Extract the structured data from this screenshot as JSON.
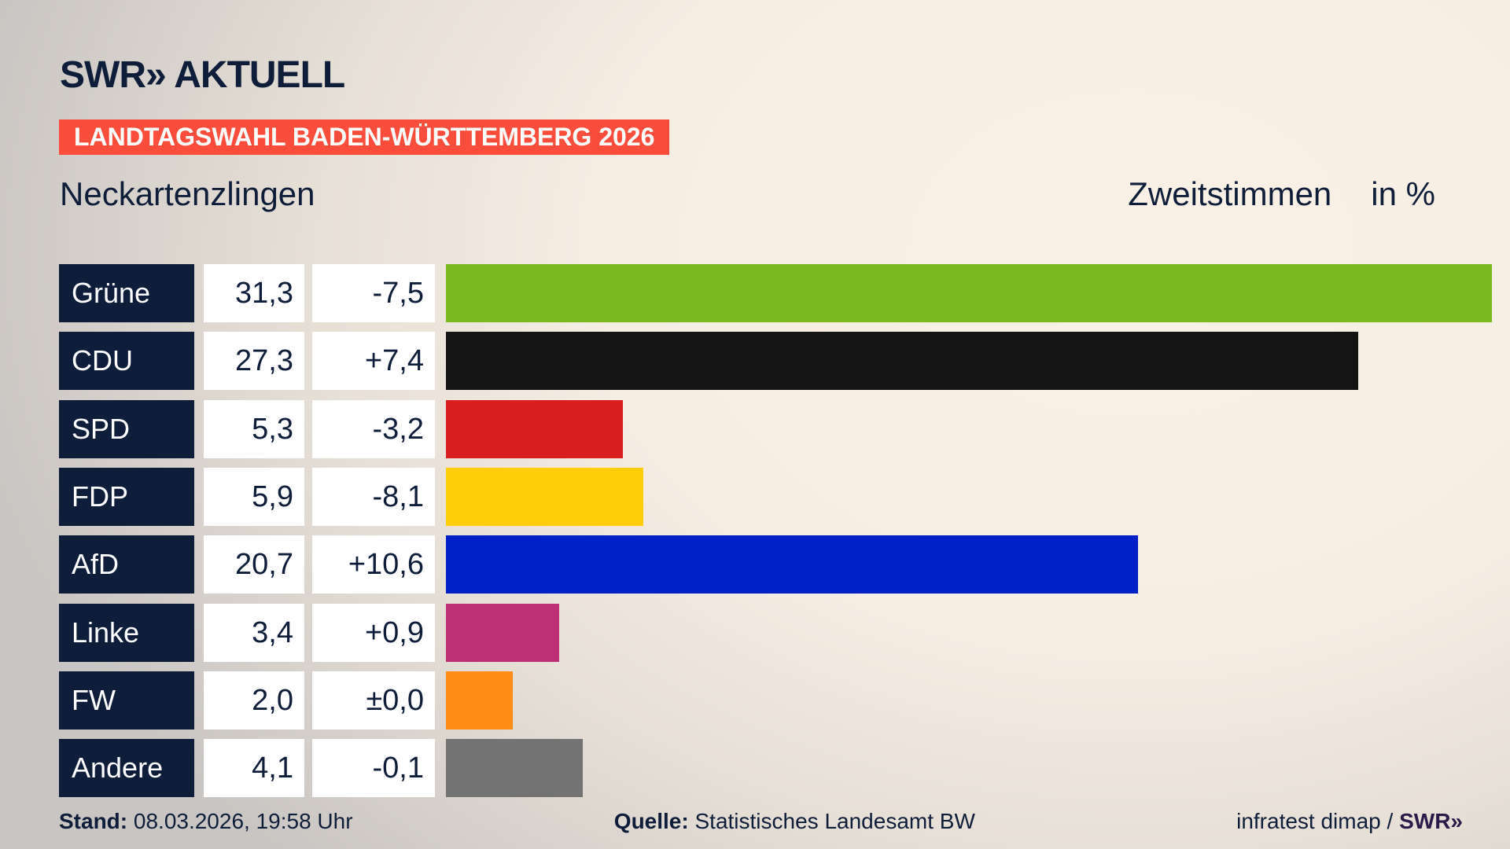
{
  "header": {
    "logo": "SWR» AKTUELL",
    "banner": "LANDTAGSWAHL BADEN-WÜRTTEMBERG 2026",
    "location": "Neckartenzlingen",
    "vote_type": "Zweitstimmen",
    "unit": "in %"
  },
  "chart_data": {
    "type": "bar",
    "orientation": "horizontal",
    "categories": [
      "Grüne",
      "CDU",
      "SPD",
      "FDP",
      "AfD",
      "Linke",
      "FW",
      "Andere"
    ],
    "values": [
      31.3,
      27.3,
      5.3,
      5.9,
      20.7,
      3.4,
      2.0,
      4.1
    ],
    "value_labels": [
      "31,3",
      "27,3",
      "5,3",
      "5,9",
      "20,7",
      "3,4",
      "2,0",
      "4,1"
    ],
    "change_labels": [
      "-7,5",
      "+7,4",
      "-3,2",
      "-8,1",
      "+10,6",
      "+0,9",
      "±0,0",
      "-0,1"
    ],
    "colors": [
      "#7aba1f",
      "#141414",
      "#d81f1d",
      "#ffcd0a",
      "#0021c8",
      "#bd3075",
      "#ff8c17",
      "#737373"
    ],
    "grid": false
  },
  "footer": {
    "stand_label": "Stand:",
    "stand_value": "08.03.2026, 19:58 Uhr",
    "source_label": "Quelle:",
    "source_value": "Statistisches Landesamt BW",
    "credit": "infratest dimap /",
    "credit_brand": "SWR»"
  }
}
